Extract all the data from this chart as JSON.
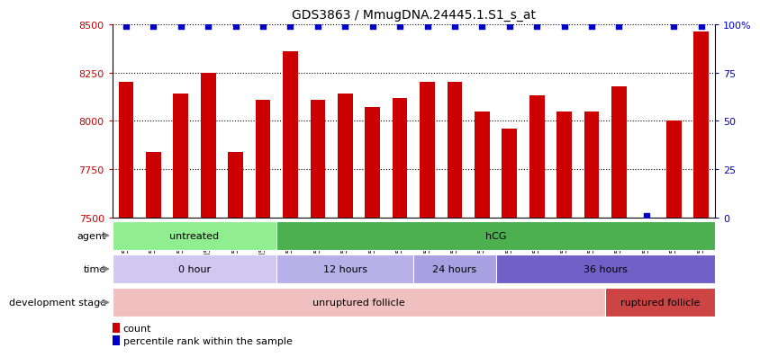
{
  "title": "GDS3863 / MmugDNA.24445.1.S1_s_at",
  "samples": [
    "GSM563219",
    "GSM563220",
    "GSM563221",
    "GSM563222",
    "GSM563223",
    "GSM563224",
    "GSM563225",
    "GSM563226",
    "GSM563227",
    "GSM563228",
    "GSM563229",
    "GSM563230",
    "GSM563231",
    "GSM563232",
    "GSM563233",
    "GSM563234",
    "GSM563235",
    "GSM563236",
    "GSM563237",
    "GSM563238",
    "GSM563239",
    "GSM563240"
  ],
  "counts": [
    8200,
    7840,
    8140,
    8250,
    7840,
    8110,
    8360,
    8110,
    8140,
    8070,
    8120,
    8200,
    8200,
    8050,
    7960,
    8130,
    8050,
    8050,
    8180,
    7500,
    8000,
    8460
  ],
  "percentiles": [
    99,
    99,
    99,
    99,
    99,
    99,
    99,
    99,
    99,
    99,
    99,
    99,
    99,
    99,
    99,
    99,
    99,
    99,
    99,
    1,
    99,
    99
  ],
  "bar_color": "#cc0000",
  "dot_color": "#0000cc",
  "ylim_left": [
    7500,
    8500
  ],
  "ylim_right": [
    0,
    100
  ],
  "yticks_left": [
    7500,
    7750,
    8000,
    8250,
    8500
  ],
  "yticks_right": [
    0,
    25,
    50,
    75,
    100
  ],
  "yticklabels_right": [
    "0",
    "25",
    "50",
    "75",
    "100%"
  ],
  "grid_values": [
    7750,
    8000,
    8250,
    8500
  ],
  "agent_groups": [
    {
      "label": "untreated",
      "start": 0,
      "end": 6,
      "color": "#90ee90"
    },
    {
      "label": "hCG",
      "start": 6,
      "end": 22,
      "color": "#4caf50"
    }
  ],
  "time_groups": [
    {
      "label": "0 hour",
      "start": 0,
      "end": 6,
      "color": "#d0c8f0"
    },
    {
      "label": "12 hours",
      "start": 6,
      "end": 11,
      "color": "#b8b0e8"
    },
    {
      "label": "24 hours",
      "start": 11,
      "end": 14,
      "color": "#a8a0e0"
    },
    {
      "label": "36 hours",
      "start": 14,
      "end": 22,
      "color": "#7060c8"
    }
  ],
  "dev_groups": [
    {
      "label": "unruptured follicle",
      "start": 0,
      "end": 18,
      "color": "#f0c0c0"
    },
    {
      "label": "ruptured follicle",
      "start": 18,
      "end": 22,
      "color": "#cc4444"
    }
  ],
  "legend_count_color": "#cc0000",
  "legend_dot_color": "#0000cc",
  "background_color": "#ffffff"
}
